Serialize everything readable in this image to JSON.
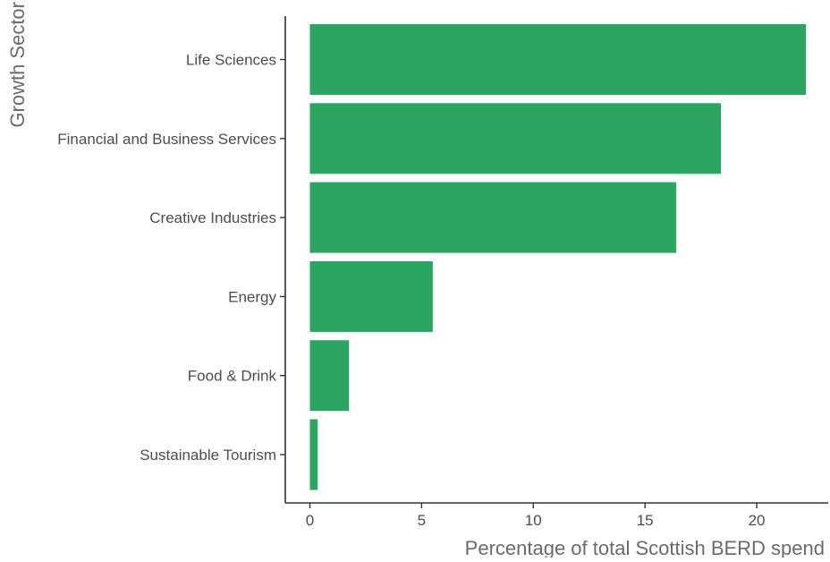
{
  "chart_data": {
    "type": "bar",
    "orientation": "horizontal",
    "categories": [
      "Life Sciences",
      "Financial and Business Services",
      "Creative Industries",
      "Energy",
      "Food & Drink",
      "Sustainable Tourism"
    ],
    "values": [
      22.2,
      18.4,
      16.4,
      5.5,
      1.75,
      0.35
    ],
    "xlabel": "Percentage of total Scottish BERD spend",
    "ylabel": "Growth Sector",
    "xlim": [
      -1.1,
      23.2
    ],
    "xticks": [
      0,
      5,
      10,
      15,
      20
    ],
    "grid": false,
    "legend": "none",
    "bar_color": "#2ca462"
  }
}
